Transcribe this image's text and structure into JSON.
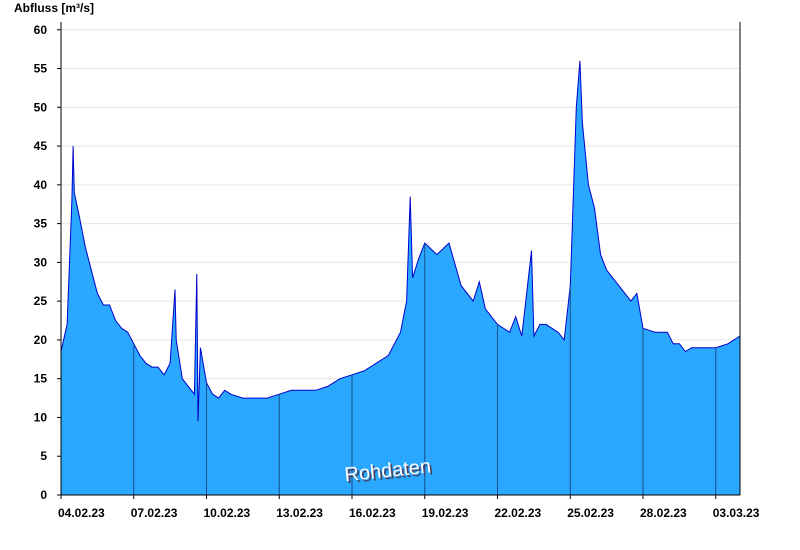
{
  "chart_data": {
    "type": "area",
    "y_label": "Abfluss [m³/s]",
    "annotation": "Rohdaten",
    "x": [
      0,
      0.25,
      0.45,
      0.5,
      0.55,
      0.75,
      1,
      1.25,
      1.5,
      1.75,
      2,
      2.25,
      2.5,
      2.75,
      3,
      3.25,
      3.5,
      3.75,
      4,
      4.25,
      4.5,
      4.7,
      4.75,
      5,
      5.25,
      5.5,
      5.6,
      5.65,
      5.75,
      6,
      6.25,
      6.5,
      6.75,
      7,
      7.5,
      8,
      8.5,
      9,
      9.5,
      10,
      10.5,
      11,
      11.5,
      12,
      12.5,
      13,
      13.5,
      14,
      14.25,
      14.4,
      14.5,
      14.75,
      15,
      15.5,
      16,
      16.5,
      17,
      17.25,
      17.5,
      18,
      18.5,
      18.75,
      19,
      19.4,
      19.5,
      19.75,
      20,
      20.5,
      20.75,
      21,
      21.25,
      21.4,
      21.5,
      21.75,
      22,
      22.25,
      22.5,
      22.75,
      23,
      23.5,
      23.75,
      24,
      24.5,
      25,
      25.25,
      25.5,
      25.75,
      26,
      26.5,
      27,
      27.5,
      28
    ],
    "values": [
      18.5,
      22,
      38,
      45,
      39,
      36,
      32,
      29,
      26,
      24.5,
      24.5,
      22.5,
      21.5,
      21,
      19.5,
      18,
      17,
      16.5,
      16.5,
      15.5,
      17,
      26.5,
      20,
      15,
      14,
      13,
      28.5,
      9.5,
      19,
      14.5,
      13,
      12.5,
      13.5,
      13,
      12.5,
      12.5,
      12.5,
      13,
      13.5,
      13.5,
      13.5,
      14,
      15,
      15.5,
      16,
      17,
      18,
      21,
      25,
      38.5,
      28,
      30.5,
      32.5,
      31,
      32.5,
      27,
      25,
      27.5,
      24,
      22,
      21,
      23,
      20.5,
      31.5,
      20.5,
      22,
      22,
      21,
      20,
      27,
      50,
      56,
      48,
      40,
      37,
      31,
      29,
      28,
      27,
      25,
      26,
      21.5,
      21,
      21,
      19.5,
      19.5,
      18.5,
      19,
      19,
      19,
      19.5,
      20.5
    ],
    "fill_color": "#2aa8ff",
    "line_color": "#0000cc",
    "xlim": [
      0,
      28
    ],
    "xticks": [
      {
        "value": 0,
        "label": "04.02.23"
      },
      {
        "value": 3,
        "label": "07.02.23"
      },
      {
        "value": 6,
        "label": "10.02.23"
      },
      {
        "value": 9,
        "label": "13.02.23"
      },
      {
        "value": 12,
        "label": "16.02.23"
      },
      {
        "value": 15,
        "label": "19.02.23"
      },
      {
        "value": 18,
        "label": "22.02.23"
      },
      {
        "value": 21,
        "label": "25.02.23"
      },
      {
        "value": 24,
        "label": "28.02.23"
      },
      {
        "value": 27,
        "label": "03.03.23"
      }
    ],
    "ylim": [
      0,
      61
    ],
    "yticks": [
      0,
      5,
      10,
      15,
      20,
      25,
      30,
      35,
      40,
      45,
      50,
      55,
      60
    ],
    "grid": true
  }
}
